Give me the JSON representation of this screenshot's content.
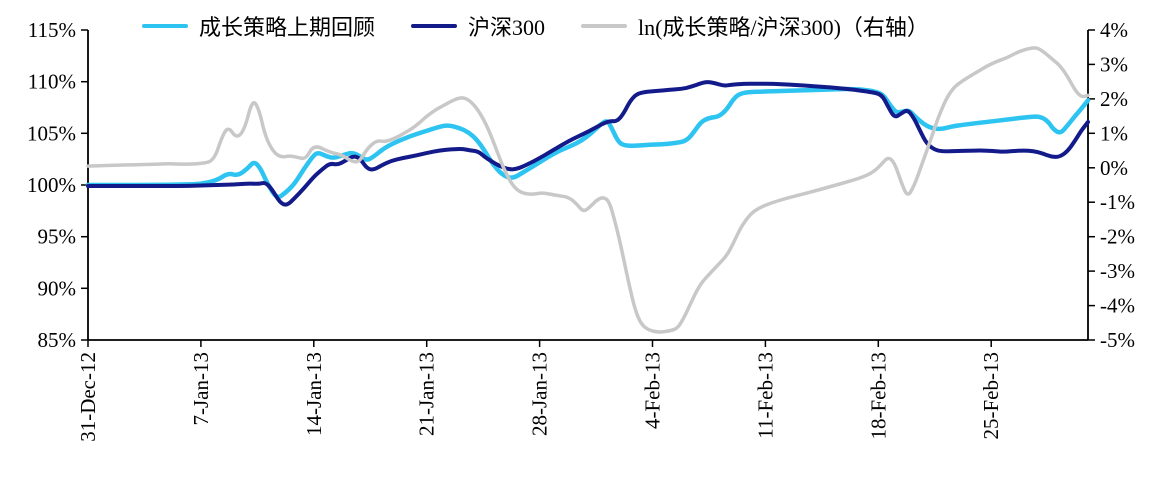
{
  "page": {
    "background": "#ffffff"
  },
  "chart_data": {
    "type": "line",
    "title": "",
    "grid": false,
    "legend_position": "top",
    "x_axis": {
      "tick_labels": [
        "31-Dec-12",
        "7-Jan-13",
        "14-Jan-13",
        "21-Jan-13",
        "28-Jan-13",
        "4-Feb-13",
        "11-Feb-13",
        "18-Feb-13",
        "25-Feb-13"
      ],
      "tick_days": [
        0,
        7,
        14,
        21,
        28,
        35,
        42,
        49,
        56
      ],
      "domain_days": [
        0,
        62
      ],
      "label_rotation_deg": -90
    },
    "left_axis": {
      "min": 85,
      "max": 115,
      "step": 5,
      "unit": "%",
      "tick_labels": [
        "115%",
        "110%",
        "105%",
        "100%",
        "95%",
        "90%",
        "85%"
      ]
    },
    "right_axis": {
      "min": -5,
      "max": 4,
      "step": 1,
      "unit": "%",
      "tick_labels": [
        "4%",
        "3%",
        "2%",
        "1%",
        "0%",
        "-1%",
        "-2%",
        "-3%",
        "-4%",
        "-5%"
      ]
    },
    "axis_color": "#000000",
    "series": [
      {
        "key": "growth-strategy",
        "name": "成长策略上期回顾",
        "axis": "left",
        "color": "#2EC4F1",
        "width": 4.5,
        "points": [
          [
            0,
            100
          ],
          [
            2,
            100
          ],
          [
            4,
            100
          ],
          [
            6,
            100.05
          ],
          [
            7,
            100.1
          ],
          [
            8,
            100.45
          ],
          [
            8.7,
            101.15
          ],
          [
            9.3,
            100.9
          ],
          [
            9.9,
            101.6
          ],
          [
            10.3,
            102.3
          ],
          [
            10.7,
            101.6
          ],
          [
            11.1,
            100.2
          ],
          [
            11.7,
            98.65
          ],
          [
            12.2,
            99.2
          ],
          [
            12.8,
            100.1
          ],
          [
            13.4,
            101.6
          ],
          [
            14,
            102.9
          ],
          [
            14.3,
            103.15
          ],
          [
            14.8,
            102.75
          ],
          [
            15.3,
            102.6
          ],
          [
            15.9,
            102.95
          ],
          [
            16.4,
            103.15
          ],
          [
            16.9,
            102.75
          ],
          [
            17.3,
            102.35
          ],
          [
            17.8,
            102.85
          ],
          [
            18.3,
            103.5
          ],
          [
            19,
            104.1
          ],
          [
            20,
            104.75
          ],
          [
            21,
            105.25
          ],
          [
            21.7,
            105.6
          ],
          [
            22.3,
            105.8
          ],
          [
            23,
            105.55
          ],
          [
            23.6,
            105.1
          ],
          [
            24.1,
            104.4
          ],
          [
            24.6,
            103.3
          ],
          [
            25.1,
            102
          ],
          [
            25.7,
            100.95
          ],
          [
            26.3,
            100.6
          ],
          [
            27,
            101.25
          ],
          [
            27.8,
            102
          ],
          [
            28.5,
            102.7
          ],
          [
            29.2,
            103.3
          ],
          [
            29.9,
            103.75
          ],
          [
            30.6,
            104.3
          ],
          [
            31.2,
            105
          ],
          [
            31.8,
            105.9
          ],
          [
            32.2,
            106.3
          ],
          [
            32.5,
            105.4
          ],
          [
            32.9,
            104.1
          ],
          [
            33.3,
            103.8
          ],
          [
            34,
            103.8
          ],
          [
            34.8,
            103.9
          ],
          [
            35.6,
            103.95
          ],
          [
            36.4,
            104.05
          ],
          [
            37.1,
            104.25
          ],
          [
            37.6,
            105.2
          ],
          [
            38,
            106.1
          ],
          [
            38.5,
            106.5
          ],
          [
            39.1,
            106.6
          ],
          [
            39.6,
            107.3
          ],
          [
            40,
            108.3
          ],
          [
            40.4,
            108.85
          ],
          [
            41,
            109
          ],
          [
            42,
            109.05
          ],
          [
            43,
            109.1
          ],
          [
            44,
            109.15
          ],
          [
            45,
            109.2
          ],
          [
            46,
            109.25
          ],
          [
            47,
            109.3
          ],
          [
            48,
            109.25
          ],
          [
            48.8,
            109.05
          ],
          [
            49.3,
            108.75
          ],
          [
            49.7,
            107.8
          ],
          [
            50.1,
            107
          ],
          [
            50.5,
            107.1
          ],
          [
            50.9,
            107.25
          ],
          [
            51.3,
            106.6
          ],
          [
            51.8,
            105.9
          ],
          [
            52.3,
            105.5
          ],
          [
            52.9,
            105.4
          ],
          [
            53.5,
            105.65
          ],
          [
            54.3,
            105.85
          ],
          [
            55.2,
            106
          ],
          [
            56,
            106.15
          ],
          [
            56.8,
            106.3
          ],
          [
            57.6,
            106.45
          ],
          [
            58.4,
            106.6
          ],
          [
            59,
            106.65
          ],
          [
            59.5,
            106.2
          ],
          [
            59.9,
            105.3
          ],
          [
            60.3,
            105
          ],
          [
            60.7,
            105.7
          ],
          [
            61.2,
            106.7
          ],
          [
            61.7,
            107.6
          ],
          [
            62,
            108.2
          ]
        ]
      },
      {
        "key": "hs300",
        "name": "沪深300",
        "axis": "left",
        "color": "#131A89",
        "width": 4,
        "points": [
          [
            0,
            99.9
          ],
          [
            2,
            99.9
          ],
          [
            4,
            99.9
          ],
          [
            6,
            99.9
          ],
          [
            7,
            99.95
          ],
          [
            8,
            100
          ],
          [
            9,
            100.05
          ],
          [
            10,
            100.15
          ],
          [
            10.6,
            100.1
          ],
          [
            11,
            100.25
          ],
          [
            11.4,
            99.6
          ],
          [
            11.9,
            98.3
          ],
          [
            12.3,
            98
          ],
          [
            12.8,
            98.7
          ],
          [
            13.4,
            99.7
          ],
          [
            14,
            100.8
          ],
          [
            14.5,
            101.5
          ],
          [
            15,
            102.1
          ],
          [
            15.5,
            101.95
          ],
          [
            16,
            102.4
          ],
          [
            16.5,
            102.85
          ],
          [
            16.9,
            102.5
          ],
          [
            17.3,
            101.6
          ],
          [
            17.7,
            101.45
          ],
          [
            18.2,
            101.9
          ],
          [
            18.8,
            102.35
          ],
          [
            19.5,
            102.6
          ],
          [
            20.3,
            102.85
          ],
          [
            21,
            103.1
          ],
          [
            21.8,
            103.35
          ],
          [
            22.5,
            103.45
          ],
          [
            23.2,
            103.5
          ],
          [
            23.7,
            103.35
          ],
          [
            24.2,
            103.25
          ],
          [
            24.6,
            102.7
          ],
          [
            25,
            102.3
          ],
          [
            25.5,
            101.85
          ],
          [
            26.1,
            101.5
          ],
          [
            26.6,
            101.55
          ],
          [
            27.2,
            101.95
          ],
          [
            28,
            102.6
          ],
          [
            28.7,
            103.25
          ],
          [
            29.4,
            103.9
          ],
          [
            30.1,
            104.5
          ],
          [
            30.8,
            105
          ],
          [
            31.4,
            105.5
          ],
          [
            32,
            106
          ],
          [
            32.4,
            106.2
          ],
          [
            32.8,
            106.15
          ],
          [
            33.2,
            106.9
          ],
          [
            33.6,
            108.1
          ],
          [
            34,
            108.8
          ],
          [
            34.5,
            109
          ],
          [
            35.2,
            109.1
          ],
          [
            36,
            109.2
          ],
          [
            36.8,
            109.3
          ],
          [
            37.4,
            109.5
          ],
          [
            37.9,
            109.8
          ],
          [
            38.4,
            110
          ],
          [
            38.9,
            109.85
          ],
          [
            39.4,
            109.6
          ],
          [
            39.9,
            109.7
          ],
          [
            40.6,
            109.8
          ],
          [
            41.5,
            109.8
          ],
          [
            42.5,
            109.78
          ],
          [
            43.5,
            109.72
          ],
          [
            44.5,
            109.62
          ],
          [
            45.5,
            109.5
          ],
          [
            46.5,
            109.38
          ],
          [
            47.5,
            109.22
          ],
          [
            48.5,
            109
          ],
          [
            49.2,
            108.8
          ],
          [
            49.6,
            107.6
          ],
          [
            50,
            106.5
          ],
          [
            50.4,
            106.9
          ],
          [
            50.8,
            107.3
          ],
          [
            51.2,
            106.5
          ],
          [
            51.6,
            105.2
          ],
          [
            52,
            104
          ],
          [
            52.5,
            103.4
          ],
          [
            53,
            103.25
          ],
          [
            53.8,
            103.28
          ],
          [
            54.6,
            103.32
          ],
          [
            55.4,
            103.35
          ],
          [
            56.1,
            103.3
          ],
          [
            56.7,
            103.2
          ],
          [
            57.3,
            103.28
          ],
          [
            58,
            103.35
          ],
          [
            58.6,
            103.3
          ],
          [
            59.2,
            103.05
          ],
          [
            59.7,
            102.75
          ],
          [
            60.2,
            102.7
          ],
          [
            60.7,
            103.2
          ],
          [
            61.2,
            104.3
          ],
          [
            61.6,
            105.3
          ],
          [
            62,
            106.1
          ]
        ]
      },
      {
        "key": "ln-ratio",
        "name": "ln(成长策略/沪深300)（右轴）",
        "axis": "right",
        "color": "#C8C8C8",
        "width": 3.5,
        "points": [
          [
            0,
            0.05
          ],
          [
            2,
            0.08
          ],
          [
            4,
            0.1
          ],
          [
            5,
            0.12
          ],
          [
            6,
            0.1
          ],
          [
            7,
            0.12
          ],
          [
            7.8,
            0.2
          ],
          [
            8.3,
            0.9
          ],
          [
            8.7,
            1.2
          ],
          [
            9.2,
            0.85
          ],
          [
            9.7,
            1.1
          ],
          [
            10.2,
            2
          ],
          [
            10.6,
            1.7
          ],
          [
            11,
            0.9
          ],
          [
            11.5,
            0.45
          ],
          [
            12,
            0.3
          ],
          [
            12.5,
            0.35
          ],
          [
            13,
            0.3
          ],
          [
            13.5,
            0.25
          ],
          [
            14,
            0.68
          ],
          [
            15,
            0.45
          ],
          [
            15.7,
            0.38
          ],
          [
            16.3,
            0.2
          ],
          [
            16.8,
            0.15
          ],
          [
            17.3,
            0.55
          ],
          [
            17.9,
            0.8
          ],
          [
            18.4,
            0.75
          ],
          [
            19,
            0.85
          ],
          [
            19.6,
            1
          ],
          [
            20.3,
            1.2
          ],
          [
            21,
            1.5
          ],
          [
            21.6,
            1.7
          ],
          [
            22.2,
            1.85
          ],
          [
            22.8,
            2
          ],
          [
            23.3,
            2.05
          ],
          [
            23.8,
            1.9
          ],
          [
            24.3,
            1.6
          ],
          [
            24.8,
            1.15
          ],
          [
            25.3,
            0.55
          ],
          [
            25.8,
            -0.05
          ],
          [
            26.3,
            -0.5
          ],
          [
            26.8,
            -0.72
          ],
          [
            27.5,
            -0.78
          ],
          [
            28.2,
            -0.72
          ],
          [
            29,
            -0.8
          ],
          [
            29.8,
            -0.85
          ],
          [
            30.3,
            -1.05
          ],
          [
            30.7,
            -1.28
          ],
          [
            31.1,
            -1.15
          ],
          [
            31.5,
            -0.95
          ],
          [
            31.9,
            -0.85
          ],
          [
            32.3,
            -0.95
          ],
          [
            32.7,
            -1.6
          ],
          [
            33.1,
            -2.4
          ],
          [
            33.5,
            -3.3
          ],
          [
            33.9,
            -4.1
          ],
          [
            34.3,
            -4.55
          ],
          [
            34.8,
            -4.72
          ],
          [
            35.4,
            -4.78
          ],
          [
            36,
            -4.74
          ],
          [
            36.5,
            -4.68
          ],
          [
            36.9,
            -4.4
          ],
          [
            37.3,
            -4
          ],
          [
            37.7,
            -3.6
          ],
          [
            38.1,
            -3.3
          ],
          [
            38.6,
            -3.05
          ],
          [
            39.1,
            -2.8
          ],
          [
            39.6,
            -2.55
          ],
          [
            40,
            -2.2
          ],
          [
            40.4,
            -1.8
          ],
          [
            40.8,
            -1.5
          ],
          [
            41.3,
            -1.25
          ],
          [
            41.9,
            -1.1
          ],
          [
            42.5,
            -1
          ],
          [
            43.2,
            -0.9
          ],
          [
            44,
            -0.8
          ],
          [
            45,
            -0.68
          ],
          [
            46,
            -0.55
          ],
          [
            47,
            -0.42
          ],
          [
            48,
            -0.28
          ],
          [
            48.7,
            -0.12
          ],
          [
            49.2,
            0.1
          ],
          [
            49.6,
            0.32
          ],
          [
            50,
            0.15
          ],
          [
            50.4,
            -0.4
          ],
          [
            50.8,
            -0.85
          ],
          [
            51.2,
            -0.55
          ],
          [
            51.7,
            0.1
          ],
          [
            52.2,
            0.75
          ],
          [
            52.7,
            1.45
          ],
          [
            53.2,
            2
          ],
          [
            53.7,
            2.35
          ],
          [
            54.3,
            2.55
          ],
          [
            55,
            2.75
          ],
          [
            55.7,
            2.95
          ],
          [
            56.4,
            3.1
          ],
          [
            57,
            3.2
          ],
          [
            57.6,
            3.35
          ],
          [
            58.2,
            3.45
          ],
          [
            58.8,
            3.5
          ],
          [
            59.3,
            3.35
          ],
          [
            59.8,
            3.15
          ],
          [
            60.3,
            2.95
          ],
          [
            60.8,
            2.6
          ],
          [
            61.2,
            2.25
          ],
          [
            61.6,
            2.05
          ],
          [
            62,
            2.1
          ]
        ]
      }
    ]
  }
}
